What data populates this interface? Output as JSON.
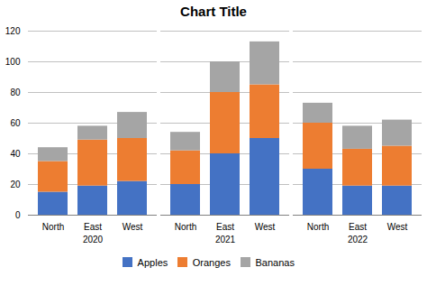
{
  "chart_data": [
    {
      "type": "bar",
      "title": "Chart Title",
      "xlabel": "2020",
      "stacked": true,
      "grid": true,
      "legend": "bottom",
      "categories": [
        "North",
        "East",
        "West"
      ],
      "series": [
        {
          "name": "Apples",
          "color": "#4472C4",
          "values": [
            15,
            19,
            22
          ]
        },
        {
          "name": "Oranges",
          "color": "#ED7D31",
          "values": [
            20,
            30,
            28
          ]
        },
        {
          "name": "Bananas",
          "color": "#A5A5A5",
          "values": [
            9,
            9,
            17
          ]
        }
      ],
      "ylim": [
        0,
        120
      ],
      "yticks": [
        0,
        20,
        40,
        60,
        80,
        100,
        120
      ]
    },
    {
      "type": "bar",
      "xlabel": "2021",
      "stacked": true,
      "grid": true,
      "tick_labels": "x",
      "categories": [
        "North",
        "East",
        "West"
      ],
      "series": [
        {
          "name": "Apples",
          "color": "#4472C4",
          "values": [
            20,
            40,
            50
          ]
        },
        {
          "name": "Oranges",
          "color": "#ED7D31",
          "values": [
            22,
            40,
            35
          ]
        },
        {
          "name": "Bananas",
          "color": "#A5A5A5",
          "values": [
            12,
            20,
            28
          ]
        }
      ],
      "ylim": [
        0,
        120
      ],
      "yticks": [
        0,
        20,
        40,
        60,
        80,
        100,
        120
      ]
    },
    {
      "type": "bar",
      "xlabel": "2022",
      "stacked": true,
      "grid": true,
      "tick_labels": "x",
      "categories": [
        "North",
        "East",
        "West"
      ],
      "series": [
        {
          "name": "Apples",
          "color": "#4472C4",
          "values": [
            30,
            19,
            19
          ]
        },
        {
          "name": "Oranges",
          "color": "#ED7D31",
          "values": [
            30,
            24,
            26
          ]
        },
        {
          "name": "Bananas",
          "color": "#A5A5A5",
          "values": [
            13,
            15,
            17
          ]
        }
      ],
      "ylim": [
        0,
        120
      ],
      "yticks": [
        0,
        20,
        40,
        60,
        80,
        100,
        120
      ]
    }
  ]
}
